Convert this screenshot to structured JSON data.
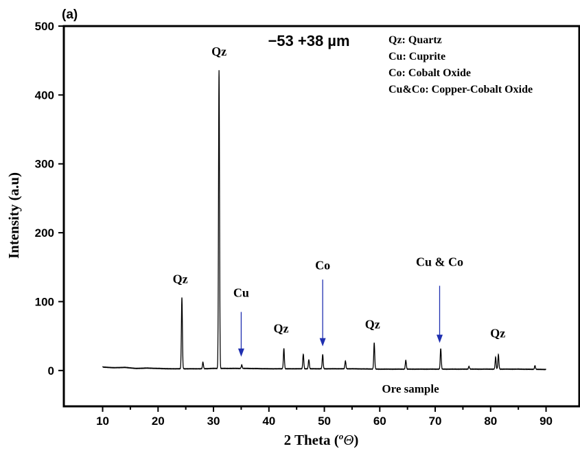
{
  "panel_label": "(a)",
  "chart_data": {
    "type": "line",
    "title": "−53 +38 µm",
    "xlabel_main": "2 Theta (",
    "xlabel_sup": "o",
    "xlabel_symbol": "Θ",
    "xlabel_close": ")",
    "ylabel": "Intensity (a.u)",
    "xlim": [
      3,
      96
    ],
    "ylim": [
      -52,
      500
    ],
    "xticks": [
      10,
      20,
      30,
      40,
      50,
      60,
      70,
      80,
      90
    ],
    "yticks": [
      0,
      100,
      200,
      300,
      400,
      500
    ],
    "grid": false,
    "series_label": "Ore sample",
    "line_color": "#000000",
    "arrow_color": "#1f2fb0",
    "legend_position": "top-right",
    "legend": [
      "Qz: Quartz",
      "Cu: Cuprite",
      "Co: Cobalt Oxide",
      "Cu&Co: Copper-Cobalt Oxide"
    ],
    "baseline": [
      [
        10,
        5
      ],
      [
        12,
        4
      ],
      [
        14,
        4.5
      ],
      [
        16,
        3
      ],
      [
        18,
        3.5
      ],
      [
        20,
        3
      ],
      [
        22,
        2.5
      ],
      [
        25,
        2.5
      ],
      [
        28,
        2.5
      ],
      [
        30,
        3
      ],
      [
        33,
        3
      ],
      [
        36,
        3
      ],
      [
        40,
        2.5
      ],
      [
        45,
        2.5
      ],
      [
        50,
        2.5
      ],
      [
        55,
        2.5
      ],
      [
        60,
        2
      ],
      [
        65,
        2
      ],
      [
        70,
        2
      ],
      [
        75,
        2
      ],
      [
        80,
        2
      ],
      [
        85,
        2
      ],
      [
        90,
        1.5
      ]
    ],
    "peaks": [
      {
        "x": 24.3,
        "y": 106
      },
      {
        "x": 28.1,
        "y": 12
      },
      {
        "x": 31.0,
        "y": 436
      },
      {
        "x": 35.1,
        "y": 8
      },
      {
        "x": 42.7,
        "y": 32
      },
      {
        "x": 46.2,
        "y": 24
      },
      {
        "x": 47.2,
        "y": 16
      },
      {
        "x": 49.7,
        "y": 23
      },
      {
        "x": 53.8,
        "y": 14
      },
      {
        "x": 59.0,
        "y": 40
      },
      {
        "x": 64.7,
        "y": 15
      },
      {
        "x": 71.0,
        "y": 32
      },
      {
        "x": 76.1,
        "y": 6
      },
      {
        "x": 80.9,
        "y": 19
      },
      {
        "x": 81.4,
        "y": 23
      },
      {
        "x": 88.0,
        "y": 7
      }
    ],
    "annotations": [
      {
        "text": "Qz",
        "x": 24.0,
        "y": 127
      },
      {
        "text": "Qz",
        "x": 31.0,
        "y": 457
      },
      {
        "text": "Cu",
        "x": 35.0,
        "y": 107
      },
      {
        "text": "Qz",
        "x": 42.2,
        "y": 55
      },
      {
        "text": "Co",
        "x": 49.7,
        "y": 147
      },
      {
        "text": "Qz",
        "x": 58.7,
        "y": 61
      },
      {
        "text": "Cu & Co",
        "x": 70.8,
        "y": 152
      },
      {
        "text": "Qz",
        "x": 81.3,
        "y": 48
      }
    ],
    "arrows": [
      {
        "x": 35.0,
        "y_from": 85,
        "y_to": 20
      },
      {
        "x": 49.7,
        "y_from": 132,
        "y_to": 35
      },
      {
        "x": 70.8,
        "y_from": 123,
        "y_to": 40
      }
    ]
  }
}
